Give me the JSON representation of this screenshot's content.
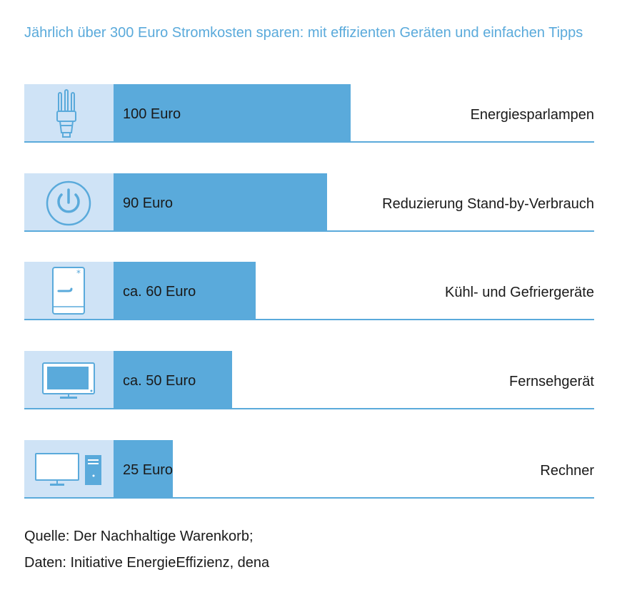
{
  "title": "Jährlich über 300 Euro Stromkosten sparen: mit effizienten Geräten und einfachen Tipps",
  "colors": {
    "title": "#5aaadb",
    "bar": "#5aaadb",
    "icon_bg": "#cfe3f6",
    "icon_line": "#5aaadb",
    "baseline": "#5aaadb"
  },
  "chart_data": {
    "type": "bar",
    "orientation": "horizontal",
    "title": "Jährlich über 300 Euro Stromkosten sparen: mit effizienten Geräten und einfachen Tipps",
    "unit": "Euro",
    "categories": [
      "Energiesparlampen",
      "Reduzierung Stand-by-Verbrauch",
      "Kühl- und Gefriergeräte",
      "Fernsehgerät",
      "Rechner"
    ],
    "values": [
      100,
      90,
      60,
      50,
      25
    ],
    "value_labels": [
      "100 Euro",
      "90 Euro",
      "ca. 60 Euro",
      "ca. 50 Euro",
      "25 Euro"
    ],
    "icons": [
      "light-bulb-icon",
      "power-icon",
      "fridge-icon",
      "tv-icon",
      "computer-icon"
    ],
    "xlim": [
      0,
      100
    ],
    "grid": false
  },
  "source": {
    "line1": "Quelle: Der Nachhaltige Warenkorb;",
    "line2": "Daten: Initiative EnergieEffizienz, dena"
  }
}
